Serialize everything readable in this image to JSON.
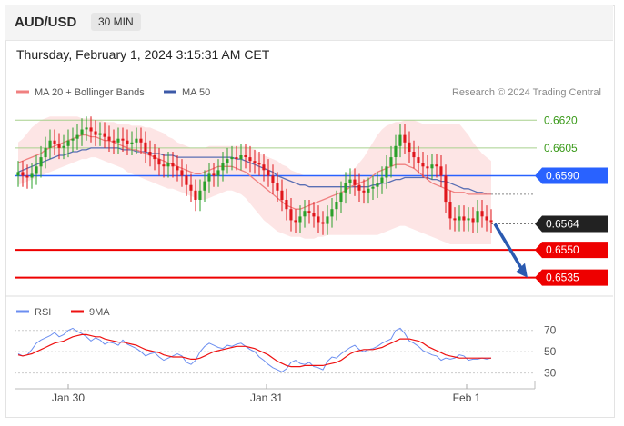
{
  "header": {
    "symbol": "AUD/USD",
    "timeframe": "30 MIN",
    "datetime": "Thursday, February 1, 2024 3:15:31 AM CET"
  },
  "legend": {
    "ma20_bb": "MA 20 + Bollinger Bands",
    "ma50": "MA 50",
    "credit": "Research © 2024 Trading Central"
  },
  "rsi_legend": {
    "rsi": "RSI",
    "ma9": "9MA"
  },
  "colors": {
    "up": "#2aa02a",
    "down": "#e0161b",
    "ma20": "#f08080",
    "ma50": "#5a6fb4",
    "bb_fill": "#fde1e1",
    "pivot": "#2962ff",
    "support": "#ee0000",
    "resistance": "#a8d08d",
    "current": "#222222",
    "rsi": "#6b8ef0",
    "rsi_ma": "#ee1111"
  },
  "chart_data": [
    {
      "type": "candlestick",
      "title": "",
      "x_labels": [
        "Jan 30",
        "Jan 31",
        "Feb 1"
      ],
      "ylim": [
        0.6527,
        0.6627
      ],
      "levels": [
        {
          "value": 0.662,
          "label": "0.6620",
          "kind": "resistance"
        },
        {
          "value": 0.6605,
          "label": "0.6605",
          "kind": "resistance"
        },
        {
          "value": 0.659,
          "label": "0.6590",
          "kind": "pivot"
        },
        {
          "value": 0.6564,
          "label": "0.6564",
          "kind": "current"
        },
        {
          "value": 0.655,
          "label": "0.6550",
          "kind": "support"
        },
        {
          "value": 0.6535,
          "label": "0.6535",
          "kind": "support"
        }
      ],
      "close": [
        0.6592,
        0.659,
        0.6589,
        0.6591,
        0.6595,
        0.66,
        0.6605,
        0.6609,
        0.6607,
        0.6605,
        0.6606,
        0.6609,
        0.661,
        0.6612,
        0.6615,
        0.6616,
        0.6614,
        0.6612,
        0.6613,
        0.6611,
        0.6609,
        0.6608,
        0.661,
        0.6609,
        0.6607,
        0.6608,
        0.661,
        0.6608,
        0.6603,
        0.6601,
        0.6599,
        0.6596,
        0.6595,
        0.6597,
        0.6595,
        0.6593,
        0.659,
        0.6585,
        0.6582,
        0.6577,
        0.6582,
        0.6587,
        0.6591,
        0.659,
        0.6593,
        0.6597,
        0.6599,
        0.66,
        0.6599,
        0.6601,
        0.66,
        0.6598,
        0.6597,
        0.6596,
        0.6593,
        0.659,
        0.6586,
        0.6582,
        0.6577,
        0.6572,
        0.6566,
        0.6565,
        0.6568,
        0.6571,
        0.657,
        0.6568,
        0.6565,
        0.6564,
        0.6568,
        0.6572,
        0.6576,
        0.6581,
        0.6586,
        0.6588,
        0.6585,
        0.6582,
        0.6581,
        0.6583,
        0.6584,
        0.6586,
        0.6589,
        0.6595,
        0.66,
        0.6606,
        0.6612,
        0.6608,
        0.6603,
        0.66,
        0.6597,
        0.6595,
        0.6594,
        0.6596,
        0.6595,
        0.659,
        0.6576,
        0.6567,
        0.6566,
        0.6568,
        0.6566,
        0.6567,
        0.6565,
        0.6571,
        0.6568,
        0.6566,
        0.6565
      ],
      "ma20": [
        0.6597,
        0.6598,
        0.6599,
        0.66,
        0.6601,
        0.6602,
        0.6604,
        0.6605,
        0.6606,
        0.6607,
        0.6608,
        0.6609,
        0.661,
        0.6611,
        0.6612,
        0.6612,
        0.6611,
        0.6611,
        0.661,
        0.6609,
        0.6609,
        0.6608,
        0.6607,
        0.6606,
        0.6605,
        0.6604,
        0.6604,
        0.6603,
        0.6602,
        0.6601,
        0.66,
        0.6599,
        0.6598,
        0.6597,
        0.6596,
        0.6595,
        0.6594,
        0.6593,
        0.6592,
        0.6591,
        0.6591,
        0.6592,
        0.6593,
        0.6594,
        0.6595,
        0.6595,
        0.6595,
        0.6595,
        0.6594,
        0.6593,
        0.6592,
        0.659,
        0.6588,
        0.6586,
        0.6584,
        0.6582,
        0.658,
        0.6578,
        0.6576,
        0.6574,
        0.6573,
        0.6572,
        0.6572,
        0.6573,
        0.6574,
        0.6575,
        0.6576,
        0.6577,
        0.6578,
        0.6579,
        0.658,
        0.6581,
        0.6582,
        0.6584,
        0.6585,
        0.6586,
        0.6587,
        0.6588,
        0.659,
        0.6592,
        0.6593,
        0.6594,
        0.6595,
        0.6596,
        0.6596,
        0.6596,
        0.6595,
        0.6594,
        0.6592,
        0.659,
        0.6588,
        0.6586,
        0.6585,
        0.6584,
        0.6583,
        0.6582,
        0.6581,
        0.6581,
        0.6581,
        0.658,
        0.658,
        0.658,
        0.658,
        0.658,
        0.658
      ],
      "ma50": [
        0.6592,
        0.6593,
        0.6594,
        0.6595,
        0.6596,
        0.6597,
        0.6598,
        0.6599,
        0.66,
        0.6601,
        0.6601,
        0.6602,
        0.6603,
        0.6603,
        0.6604,
        0.6604,
        0.6605,
        0.6605,
        0.6605,
        0.6605,
        0.6605,
        0.6605,
        0.6605,
        0.6604,
        0.6604,
        0.6604,
        0.6603,
        0.6603,
        0.6603,
        0.6602,
        0.6602,
        0.6602,
        0.6601,
        0.6601,
        0.6601,
        0.66,
        0.66,
        0.66,
        0.66,
        0.66,
        0.66,
        0.66,
        0.66,
        0.66,
        0.66,
        0.66,
        0.66,
        0.66,
        0.6599,
        0.6599,
        0.6598,
        0.6597,
        0.6596,
        0.6595,
        0.6594,
        0.6593,
        0.6592,
        0.659,
        0.6589,
        0.6588,
        0.6587,
        0.6586,
        0.6585,
        0.6585,
        0.6584,
        0.6584,
        0.6584,
        0.6584,
        0.6584,
        0.6584,
        0.6584,
        0.6584,
        0.6584,
        0.6584,
        0.6584,
        0.6584,
        0.6584,
        0.6584,
        0.6585,
        0.6585,
        0.6586,
        0.6586,
        0.6587,
        0.6588,
        0.6588,
        0.6589,
        0.6589,
        0.6589,
        0.6589,
        0.6589,
        0.6589,
        0.6588,
        0.6588,
        0.6587,
        0.6587,
        0.6586,
        0.6585,
        0.6584,
        0.6583,
        0.6583,
        0.6582,
        0.6581,
        0.6581,
        0.658,
        0.658
      ],
      "bb_upper": [
        0.6608,
        0.661,
        0.6613,
        0.6616,
        0.6618,
        0.662,
        0.6621,
        0.6622,
        0.6622,
        0.6622,
        0.6622,
        0.6622,
        0.6622,
        0.6622,
        0.6621,
        0.6621,
        0.6621,
        0.662,
        0.662,
        0.6619,
        0.6619,
        0.6619,
        0.6618,
        0.6618,
        0.6618,
        0.6617,
        0.6617,
        0.6617,
        0.6616,
        0.6616,
        0.6615,
        0.6614,
        0.6613,
        0.6611,
        0.661,
        0.6608,
        0.6607,
        0.6606,
        0.6605,
        0.6605,
        0.6605,
        0.6605,
        0.6606,
        0.6606,
        0.6606,
        0.6606,
        0.6606,
        0.6606,
        0.6606,
        0.6606,
        0.6606,
        0.6605,
        0.6604,
        0.6602,
        0.6601,
        0.66,
        0.6599,
        0.6598,
        0.6596,
        0.6595,
        0.6593,
        0.6592,
        0.6591,
        0.659,
        0.659,
        0.659,
        0.659,
        0.659,
        0.659,
        0.659,
        0.659,
        0.659,
        0.6591,
        0.6592,
        0.6594,
        0.6597,
        0.66,
        0.6604,
        0.6608,
        0.6612,
        0.6615,
        0.6617,
        0.6618,
        0.6619,
        0.6619,
        0.662,
        0.662,
        0.662,
        0.6619,
        0.6618,
        0.6618,
        0.6618,
        0.6618,
        0.6618,
        0.6618,
        0.6618,
        0.6618,
        0.6618,
        0.6615,
        0.6612,
        0.6608,
        0.6605,
        0.6602,
        0.66,
        0.6598
      ],
      "bb_lower": [
        0.6585,
        0.6586,
        0.6587,
        0.6588,
        0.6589,
        0.659,
        0.6591,
        0.6592,
        0.6593,
        0.6594,
        0.6595,
        0.6596,
        0.6597,
        0.6598,
        0.6599,
        0.6599,
        0.66,
        0.66,
        0.6599,
        0.6598,
        0.6597,
        0.6596,
        0.6595,
        0.6594,
        0.6592,
        0.6591,
        0.659,
        0.6589,
        0.6588,
        0.6587,
        0.6586,
        0.6585,
        0.6584,
        0.6583,
        0.6583,
        0.6582,
        0.6581,
        0.658,
        0.6579,
        0.6578,
        0.6577,
        0.6577,
        0.6578,
        0.6579,
        0.658,
        0.6581,
        0.6582,
        0.6582,
        0.6581,
        0.658,
        0.6578,
        0.6575,
        0.6572,
        0.6569,
        0.6566,
        0.6564,
        0.6562,
        0.656,
        0.6559,
        0.6558,
        0.6557,
        0.6557,
        0.6557,
        0.6556,
        0.6556,
        0.6556,
        0.6557,
        0.6557,
        0.6558,
        0.6558,
        0.6558,
        0.6558,
        0.6558,
        0.6558,
        0.6558,
        0.6558,
        0.6558,
        0.6558,
        0.6558,
        0.6558,
        0.6559,
        0.656,
        0.6561,
        0.6562,
        0.6563,
        0.6563,
        0.6562,
        0.6561,
        0.656,
        0.6559,
        0.6558,
        0.6557,
        0.6556,
        0.6555,
        0.6554,
        0.6553,
        0.6553,
        0.6553,
        0.6553,
        0.6553,
        0.6553,
        0.6553,
        0.6553,
        0.6553,
        0.6553
      ],
      "forecast": {
        "from": 0.6564,
        "to": 0.6535
      }
    },
    {
      "type": "line",
      "title": "RSI",
      "ylim": [
        22,
        80
      ],
      "yticks": [
        70,
        50,
        30
      ],
      "series": [
        {
          "name": "RSI",
          "values": [
            48,
            46,
            47,
            52,
            58,
            61,
            63,
            65,
            68,
            64,
            66,
            70,
            72,
            69,
            67,
            64,
            60,
            63,
            61,
            57,
            59,
            58,
            56,
            61,
            57,
            55,
            53,
            50,
            46,
            48,
            49,
            45,
            42,
            44,
            46,
            48,
            46,
            40,
            38,
            42,
            50,
            55,
            58,
            56,
            54,
            53,
            56,
            55,
            57,
            58,
            55,
            52,
            50,
            45,
            42,
            38,
            35,
            33,
            31,
            34,
            40,
            42,
            39,
            38,
            40,
            36,
            35,
            33,
            41,
            45,
            44,
            48,
            51,
            54,
            56,
            52,
            50,
            52,
            53,
            55,
            58,
            60,
            62,
            70,
            72,
            67,
            60,
            58,
            55,
            51,
            49,
            47,
            46,
            42,
            44,
            43,
            44,
            47,
            46,
            42,
            43,
            43,
            44,
            43,
            44
          ]
        },
        {
          "name": "9MA",
          "values": [
            47,
            46,
            47,
            48,
            50,
            52,
            54,
            56,
            58,
            59,
            60,
            62,
            64,
            65,
            66,
            66,
            65,
            64,
            64,
            62,
            61,
            60,
            59,
            59,
            58,
            57,
            56,
            54,
            52,
            51,
            50,
            49,
            47,
            46,
            45,
            45,
            45,
            44,
            43,
            43,
            44,
            46,
            48,
            50,
            51,
            52,
            53,
            54,
            55,
            55,
            55,
            54,
            53,
            51,
            49,
            47,
            44,
            41,
            39,
            37,
            36,
            36,
            36,
            37,
            37,
            37,
            37,
            37,
            38,
            39,
            40,
            42,
            45,
            48,
            50,
            51,
            52,
            52,
            52,
            53,
            54,
            56,
            58,
            60,
            62,
            62,
            62,
            61,
            60,
            58,
            55,
            53,
            51,
            49,
            47,
            46,
            45,
            44,
            44,
            44,
            44,
            44,
            44,
            44,
            44
          ]
        }
      ],
      "x_labels": [
        "Jan 30",
        "Jan 31",
        "Feb 1"
      ]
    }
  ]
}
